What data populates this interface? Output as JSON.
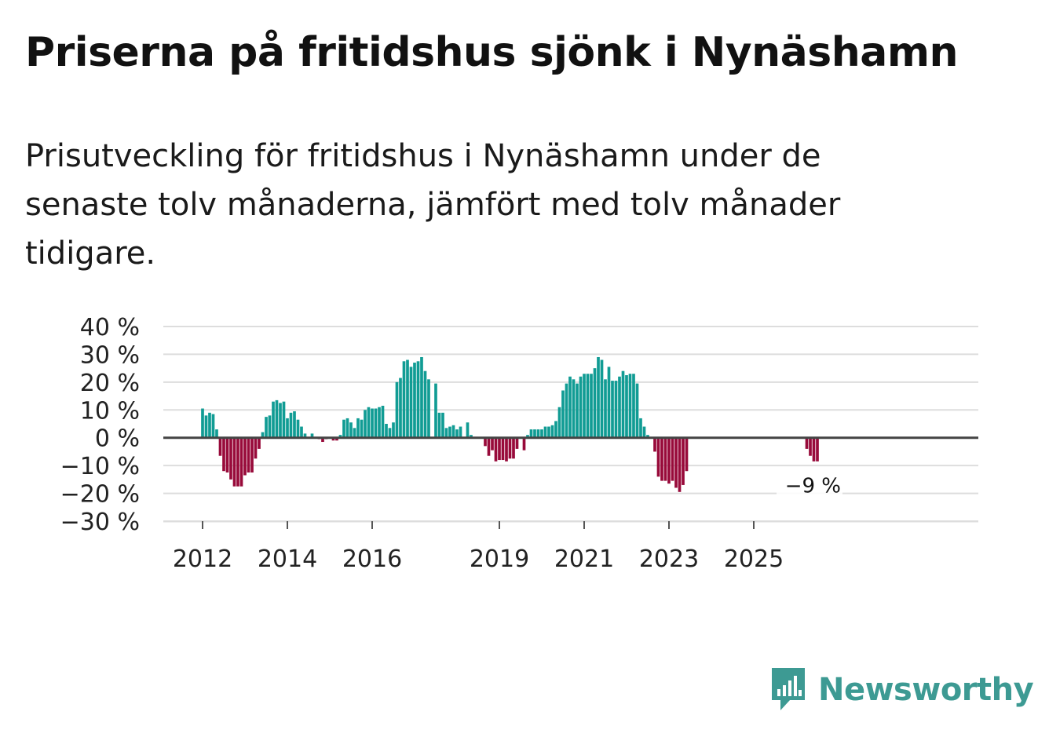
{
  "title": "Priserna på fritidshus sjönk i Nynäshamn",
  "subtitle": "Prisutveckling för fritidshus i Nynäshamn under de senaste tolv månaderna, jämfört med tolv månader tidigare.",
  "brand": {
    "name": "Newsworthy",
    "icon": "newsworthy-logo-icon"
  },
  "colors": {
    "positive": "#119c94",
    "negative": "#980a3a",
    "grid": "#dddddd",
    "zero_line": "#444444"
  },
  "chart_data": {
    "type": "bar",
    "title": "Priserna på fritidshus sjönk i Nynäshamn",
    "xlabel": "",
    "ylabel": "",
    "ylim": [
      -30,
      40
    ],
    "y_ticks": [
      -30,
      -20,
      -10,
      0,
      10,
      20,
      30,
      40
    ],
    "y_tick_labels": [
      "−30 %",
      "−20 %",
      "−10 %",
      "0 %",
      "10 %",
      "20 %",
      "30 %",
      "40 %"
    ],
    "x_ticks": [
      {
        "label": "2012",
        "year": 2012
      },
      {
        "label": "2014",
        "year": 2014
      },
      {
        "label": "2016",
        "year": 2016
      },
      {
        "label": "2019",
        "year": 2019
      },
      {
        "label": "2021",
        "year": 2021
      },
      {
        "label": "2023",
        "year": 2023
      },
      {
        "label": "2025",
        "year": 2025
      }
    ],
    "grid": true,
    "start": "2012-01",
    "values": [
      10.5,
      8,
      9,
      8.5,
      3,
      -6.5,
      -12,
      -12.5,
      -15,
      -17.5,
      -17.5,
      -17.5,
      -13.5,
      -12.5,
      -12.5,
      -7.5,
      -4,
      2,
      7.5,
      8,
      13,
      13.5,
      12.5,
      13,
      7,
      9,
      9.5,
      6.5,
      4,
      1.5,
      null,
      1.5,
      null,
      -0.5,
      -1.5,
      -0.5,
      null,
      -1,
      -1,
      1,
      6.5,
      7,
      5.5,
      3.5,
      7,
      6.5,
      10,
      11,
      10.5,
      10.5,
      11,
      11.5,
      5,
      3.5,
      5.5,
      20,
      21.5,
      27.5,
      28,
      25.5,
      27,
      27.5,
      29,
      24,
      21,
      null,
      19.5,
      9,
      9,
      3.5,
      4,
      4.5,
      3,
      4,
      null,
      5.5,
      1,
      null,
      null,
      null,
      -3,
      -6.5,
      -4.5,
      -8.5,
      -8,
      -8,
      -8.5,
      -7.5,
      -7.5,
      -4,
      null,
      -4.5,
      1,
      3,
      3,
      3,
      3,
      4,
      4,
      4.5,
      6,
      11,
      17,
      19.5,
      22,
      21,
      19.5,
      22,
      23,
      23,
      23,
      25,
      29,
      28,
      21,
      25.5,
      20.5,
      20.5,
      22,
      24,
      22.5,
      23,
      23,
      19.5,
      7,
      4,
      1,
      null,
      -5,
      -14,
      -15.5,
      -15.5,
      -16.5,
      -15.5,
      -18,
      -19.5,
      -17,
      -12,
      null,
      null,
      null,
      null,
      null,
      null,
      null,
      null,
      null,
      null,
      null,
      null,
      null,
      null,
      null,
      null,
      null,
      null,
      null,
      null,
      null,
      null,
      null,
      null,
      null,
      null,
      null,
      null,
      null,
      null,
      null,
      null,
      null,
      -4,
      -6.5,
      -8.5,
      -8.5
    ],
    "annotation": {
      "text": "−9 %",
      "value": -9
    }
  }
}
